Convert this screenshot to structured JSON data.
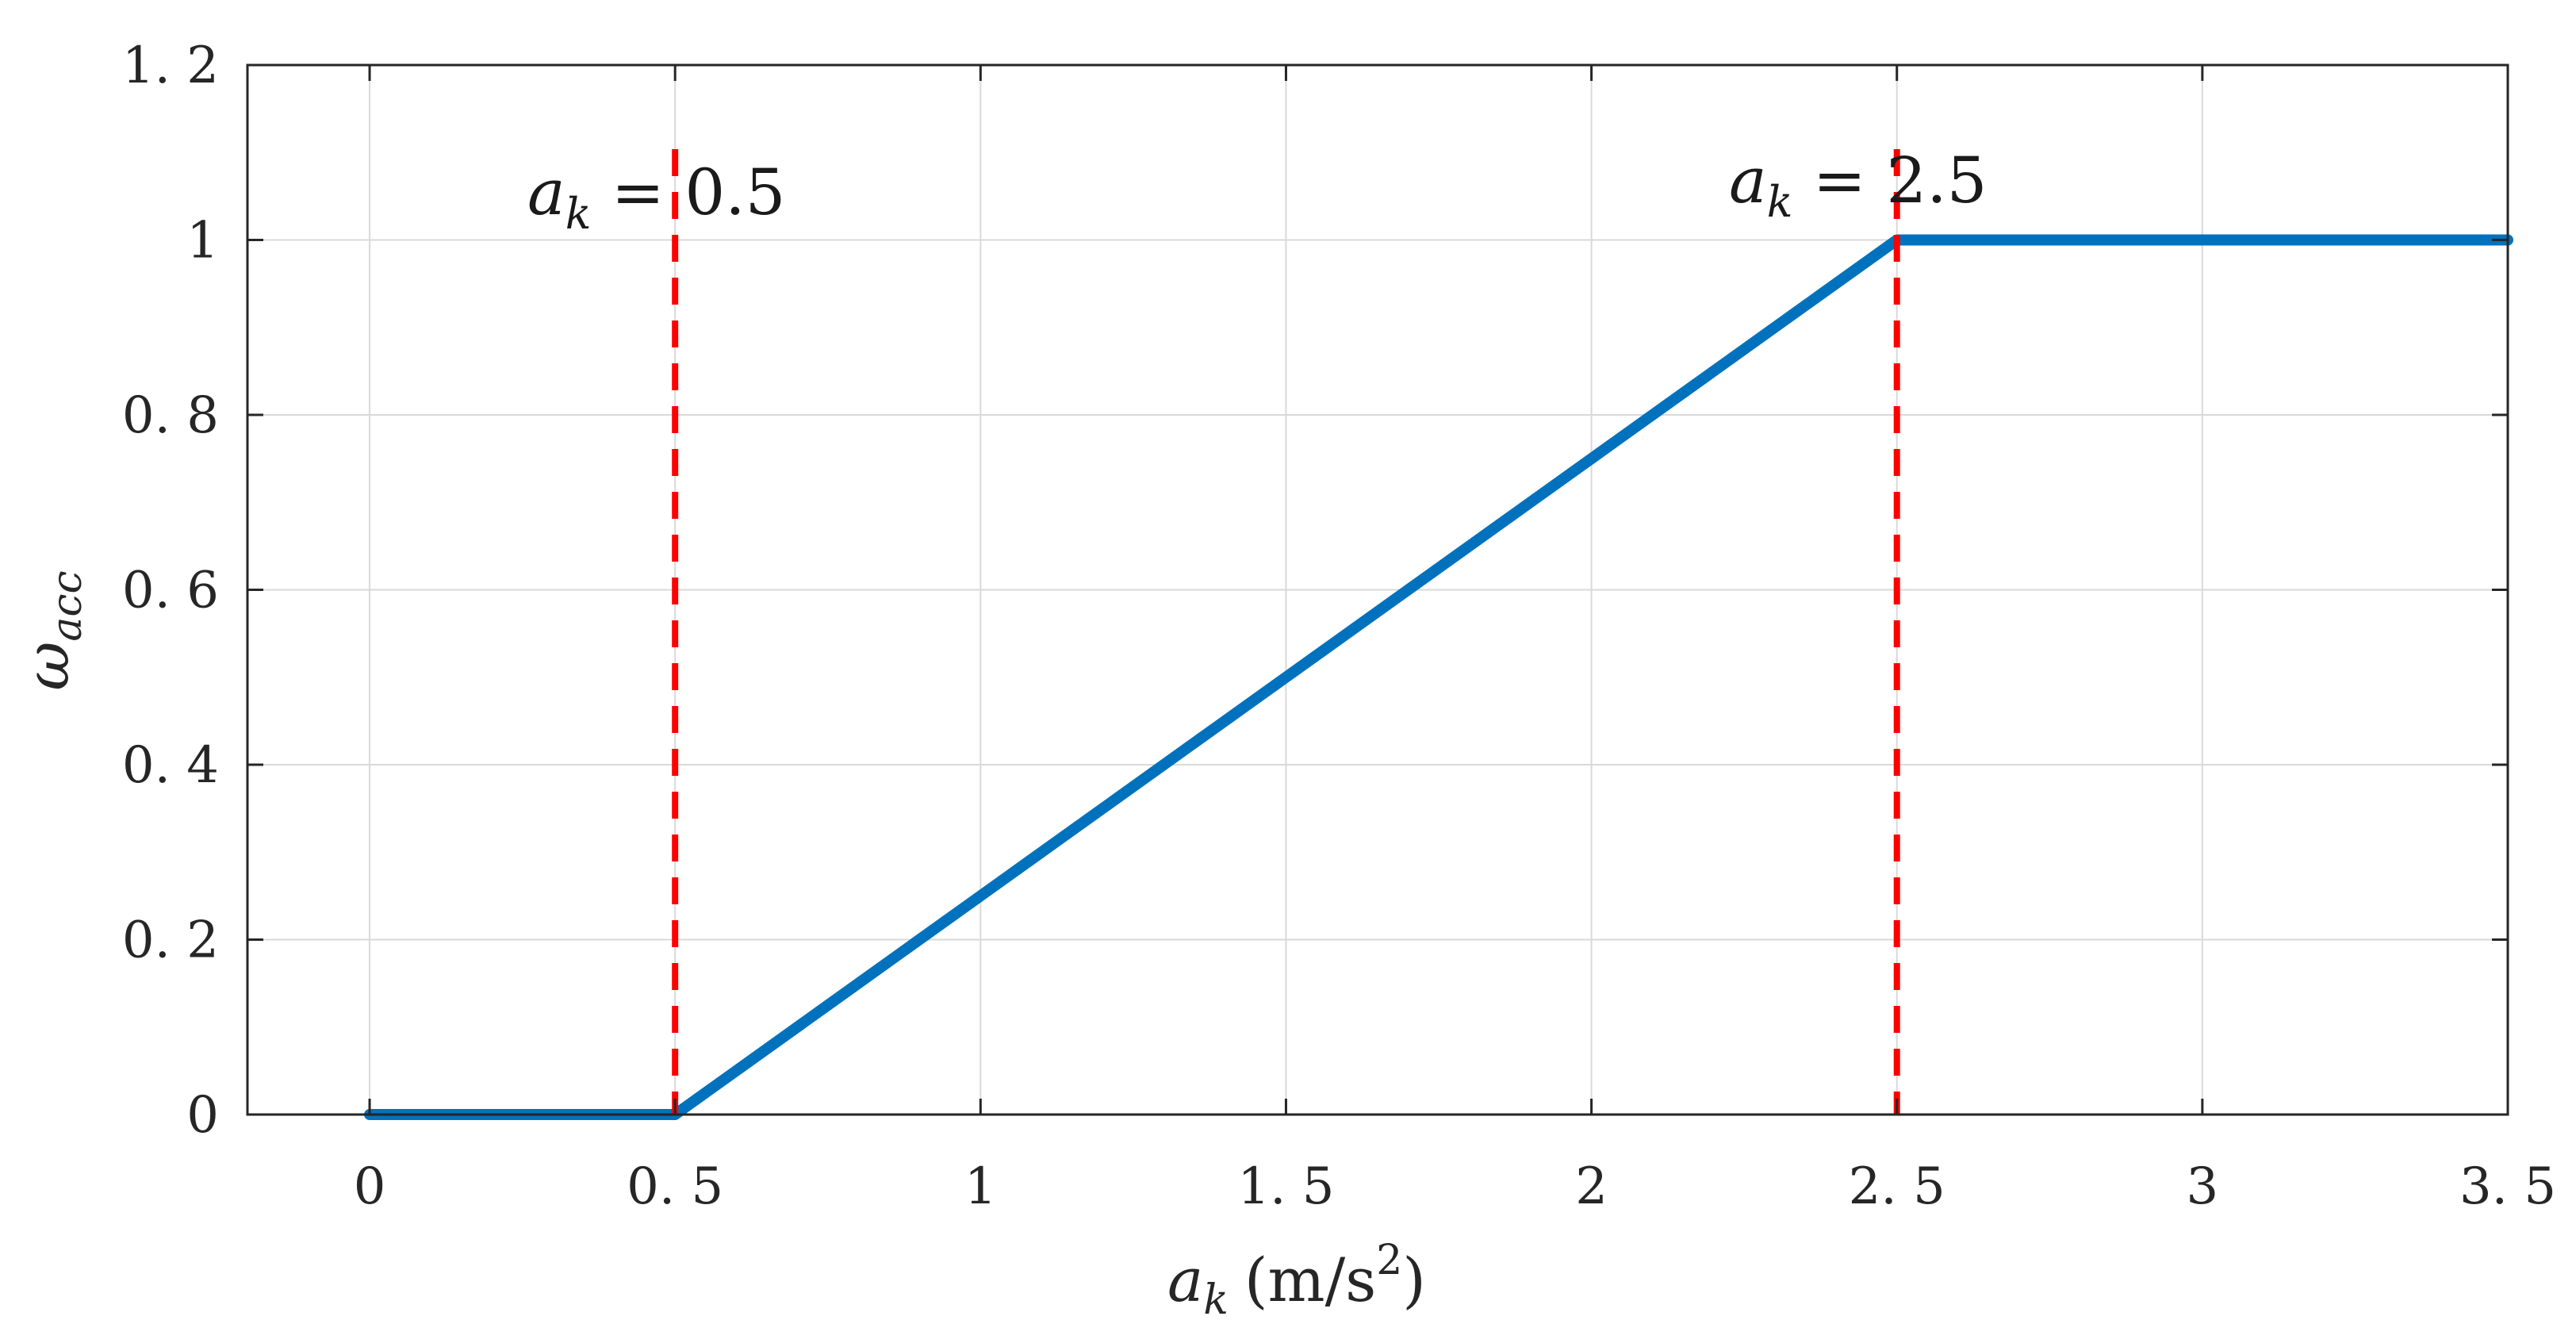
{
  "chart_data": {
    "type": "line",
    "title": "",
    "xlabel": "a_k (m/s^2)",
    "ylabel": "ω_acc",
    "xlabel_parts": {
      "var": "a",
      "sub": "k",
      "units_open": "(m/s",
      "sup": "2",
      "units_close": ")"
    },
    "ylabel_parts": {
      "var": "ω",
      "sub": "acc"
    },
    "xlim": [
      -0.2,
      3.5
    ],
    "ylim": [
      0,
      1.2
    ],
    "grid": true,
    "x_ticks": [
      0,
      0.5,
      1,
      1.5,
      2,
      2.5,
      3,
      3.5
    ],
    "x_tick_labels": [
      "0",
      "0. 5",
      "1",
      "1. 5",
      "2",
      "2. 5",
      "3",
      "3. 5"
    ],
    "y_ticks": [
      0,
      0.2,
      0.4,
      0.6,
      0.8,
      1.0,
      1.2
    ],
    "y_tick_labels": [
      "0",
      "0. 2",
      "0. 4",
      "0. 6",
      "0. 8",
      "1",
      "1. 2"
    ],
    "series": [
      {
        "x": [
          0,
          0.5,
          2.5,
          3.5
        ],
        "y": [
          0,
          0,
          1,
          1
        ],
        "color": "#0072BD"
      }
    ],
    "reference_lines": [
      {
        "x": 0.5,
        "color": "#FF0000",
        "style": "dashed",
        "label_var": "a",
        "label_sub": "k",
        "label_rest": " = 0.5"
      },
      {
        "x": 2.5,
        "color": "#FF0000",
        "style": "dashed",
        "label_var": "a",
        "label_sub": "k",
        "label_rest": " = 2.5"
      }
    ],
    "colors": {
      "series": "#0072BD",
      "reference": "#FF0000",
      "grid": "#D9D9D9",
      "axis": "#262626"
    }
  }
}
